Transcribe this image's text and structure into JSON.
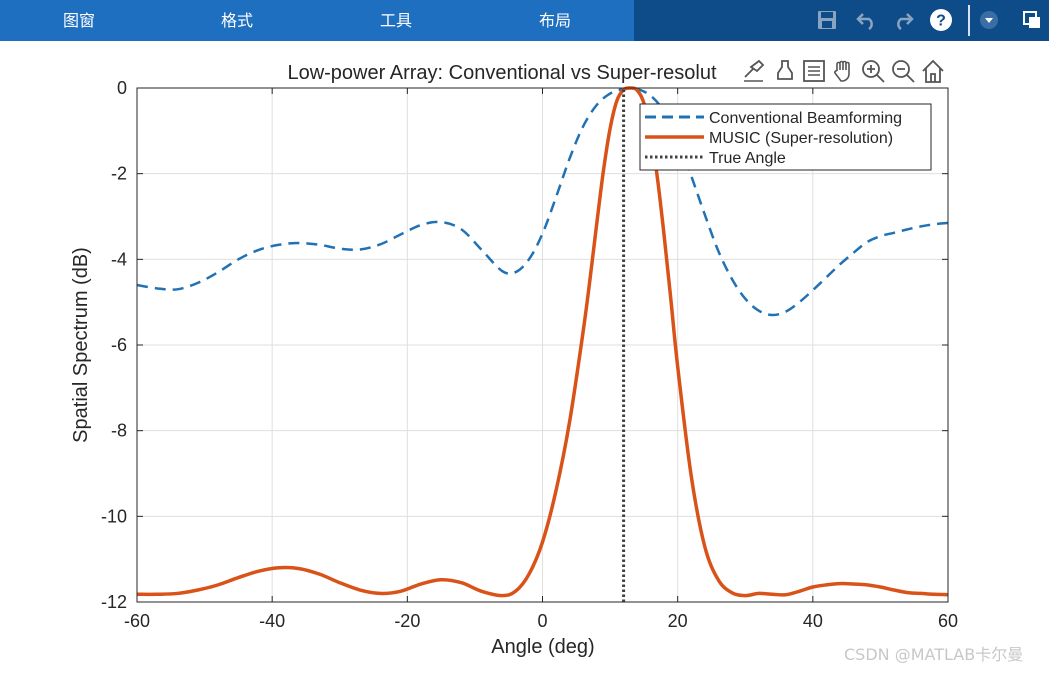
{
  "toolbar": {
    "tabs": [
      {
        "label": "图窗"
      },
      {
        "label": "格式"
      },
      {
        "label": "工具"
      },
      {
        "label": "布局"
      }
    ],
    "icons": [
      "save-icon",
      "undo-icon",
      "redo-icon",
      "help-icon",
      "dropdown-icon",
      "undock-icon"
    ],
    "colors": {
      "tabs_bg": "#1f6fc0",
      "bar_bg": "#0e4b89"
    }
  },
  "axes_toolbar": {
    "icons": [
      "brush-icon",
      "data-tips-icon",
      "legend-toggle-icon",
      "pan-icon",
      "zoom-in-icon",
      "zoom-out-icon",
      "restore-view-icon"
    ]
  },
  "watermark": "CSDN @MATLAB卡尔曼",
  "chart_data": {
    "type": "line",
    "title": "Low-power Array: Conventional vs Super-resolut",
    "xlabel": "Angle (deg)",
    "ylabel": "Spatial Spectrum (dB)",
    "xlim": [
      -60,
      60
    ],
    "ylim": [
      -12,
      0
    ],
    "xticks": [
      -60,
      -40,
      -20,
      0,
      20,
      40,
      60
    ],
    "xtick_labels": [
      "-60",
      "-40",
      "-20",
      "0",
      "20",
      "40",
      "60"
    ],
    "yticks": [
      0,
      -2,
      -4,
      -6,
      -8,
      -10,
      -12
    ],
    "ytick_labels": [
      "0",
      "-2",
      "-4",
      "-6",
      "-8",
      "-10",
      "-12"
    ],
    "grid": true,
    "legend_position": "top-right",
    "series": [
      {
        "name": "Conventional Beamforming",
        "color": "#2171b5",
        "style": "dashed",
        "x": [
          -60,
          -57,
          -54,
          -51,
          -48,
          -45,
          -42,
          -39,
          -36,
          -33,
          -30,
          -27,
          -24,
          -21,
          -18,
          -15,
          -12,
          -9,
          -6,
          -4,
          -2,
          0,
          2,
          4,
          6,
          8,
          10,
          12,
          13,
          14,
          16,
          18,
          20,
          22,
          24,
          26,
          28,
          30,
          32,
          34,
          36,
          38,
          40,
          42,
          44,
          46,
          48,
          50,
          52,
          54,
          56,
          58,
          60
        ],
        "y": [
          -4.6,
          -4.68,
          -4.7,
          -4.55,
          -4.3,
          -4.0,
          -3.78,
          -3.66,
          -3.62,
          -3.66,
          -3.75,
          -3.77,
          -3.65,
          -3.42,
          -3.2,
          -3.13,
          -3.3,
          -3.78,
          -4.27,
          -4.3,
          -4.0,
          -3.4,
          -2.55,
          -1.65,
          -0.9,
          -0.4,
          -0.13,
          -0.02,
          0.0,
          -0.02,
          -0.18,
          -0.55,
          -1.2,
          -2.05,
          -2.95,
          -3.8,
          -4.45,
          -4.92,
          -5.2,
          -5.3,
          -5.22,
          -5.0,
          -4.72,
          -4.42,
          -4.12,
          -3.85,
          -3.6,
          -3.46,
          -3.38,
          -3.3,
          -3.23,
          -3.18,
          -3.15
        ]
      },
      {
        "name": "MUSIC (Super-resolution)",
        "color": "#d95319",
        "style": "solid",
        "x": [
          -60,
          -57,
          -54,
          -51,
          -48,
          -45,
          -42,
          -39,
          -36,
          -33,
          -30,
          -27,
          -24,
          -21,
          -18,
          -15,
          -12,
          -9,
          -6,
          -4,
          -2,
          0,
          2,
          4,
          6,
          7,
          8,
          9,
          10,
          11,
          12,
          13,
          14,
          15,
          16,
          17,
          18,
          19,
          20,
          22,
          24,
          26,
          28,
          30,
          32,
          34,
          36,
          38,
          40,
          42,
          44,
          46,
          48,
          50,
          52,
          54,
          56,
          58,
          60
        ],
        "y": [
          -11.82,
          -11.82,
          -11.8,
          -11.72,
          -11.6,
          -11.43,
          -11.28,
          -11.2,
          -11.22,
          -11.35,
          -11.55,
          -11.72,
          -11.8,
          -11.75,
          -11.58,
          -11.48,
          -11.55,
          -11.75,
          -11.85,
          -11.75,
          -11.35,
          -10.6,
          -9.4,
          -7.8,
          -5.7,
          -4.5,
          -3.2,
          -1.95,
          -0.95,
          -0.3,
          -0.04,
          0.0,
          -0.05,
          -0.35,
          -1.05,
          -2.1,
          -3.45,
          -4.95,
          -6.5,
          -9.05,
          -10.7,
          -11.48,
          -11.78,
          -11.85,
          -11.8,
          -11.82,
          -11.83,
          -11.75,
          -11.65,
          -11.6,
          -11.57,
          -11.58,
          -11.6,
          -11.65,
          -11.72,
          -11.78,
          -11.8,
          -11.82,
          -11.83
        ]
      },
      {
        "name": "True Angle",
        "color": "#404040",
        "style": "dotted",
        "x": [
          12,
          12
        ],
        "y": [
          -12,
          0
        ]
      }
    ]
  }
}
